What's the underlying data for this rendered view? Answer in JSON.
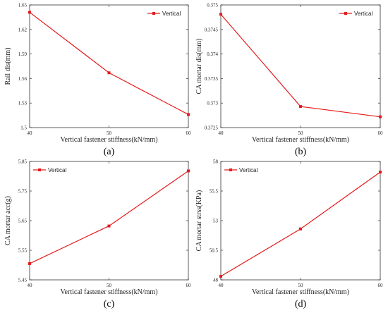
{
  "chart_data": [
    {
      "type": "line",
      "panel_label": "(a)",
      "xlabel": "Vertical fastener stiffness(kN/mm)",
      "ylabel": "Rail dis(mm)",
      "xlim": [
        40,
        60
      ],
      "ylim": [
        1.5,
        1.65
      ],
      "xticks": [
        40,
        50,
        60
      ],
      "yticks": [
        1.5,
        1.53,
        1.56,
        1.59,
        1.62,
        1.65
      ],
      "ytick_labels": [
        "1.5",
        "1.53",
        "1.56",
        "1.59",
        "1.62",
        "1.65"
      ],
      "legend": "top-right",
      "series": [
        {
          "name": "Vertical",
          "x": [
            40,
            50,
            60
          ],
          "y": [
            1.641,
            1.567,
            1.516
          ]
        }
      ]
    },
    {
      "type": "line",
      "panel_label": "(b)",
      "xlabel": "Vertical fastener stiffness(kN/mm)",
      "ylabel": "CA mortar dis(mm)",
      "xlim": [
        40,
        60
      ],
      "ylim": [
        0.3725,
        0.375
      ],
      "xticks": [
        40,
        50,
        60
      ],
      "yticks": [
        0.3725,
        0.373,
        0.3735,
        0.374,
        0.3745,
        0.375
      ],
      "ytick_labels": [
        "0.3725",
        "0.373",
        "0.3735",
        "0.374",
        "0.3745",
        "0.375"
      ],
      "legend": "top-right",
      "series": [
        {
          "name": "Vertical",
          "x": [
            40,
            50,
            60
          ],
          "y": [
            0.37481,
            0.37293,
            0.37272
          ]
        }
      ]
    },
    {
      "type": "line",
      "panel_label": "(c)",
      "xlabel": "Vertical fastener stiffness(kN/mm)",
      "ylabel": "CA mortar acc(g)",
      "xlim": [
        40,
        60
      ],
      "ylim": [
        5.45,
        5.85
      ],
      "xticks": [
        40,
        50,
        60
      ],
      "yticks": [
        5.45,
        5.55,
        5.65,
        5.75,
        5.85
      ],
      "ytick_labels": [
        "5.45",
        "5.55",
        "5.65",
        "5.75",
        "5.85"
      ],
      "legend": "top-left",
      "series": [
        {
          "name": "Vertical",
          "x": [
            40,
            50,
            60
          ],
          "y": [
            5.505,
            5.632,
            5.818
          ]
        }
      ]
    },
    {
      "type": "line",
      "panel_label": "(d)",
      "xlabel": "Vertical fastener stiffness(kN/mm)",
      "ylabel": "CA mortar strss(KPa)",
      "xlim": [
        40,
        60
      ],
      "ylim": [
        48,
        58
      ],
      "xticks": [
        40,
        50,
        60
      ],
      "yticks": [
        48,
        50.5,
        53,
        55.5,
        58
      ],
      "ytick_labels": [
        "48",
        "50.5",
        "53",
        "55.5",
        "58"
      ],
      "legend": "top-left",
      "series": [
        {
          "name": "Vertical",
          "x": [
            40,
            50,
            60
          ],
          "y": [
            48.3,
            52.3,
            57.1
          ]
        }
      ]
    }
  ]
}
